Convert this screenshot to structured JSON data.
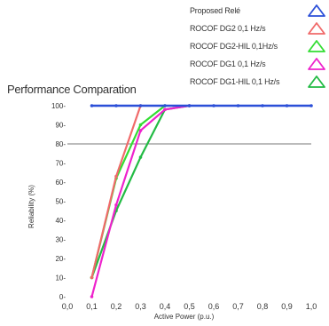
{
  "chart_data": {
    "type": "line",
    "title": "Performance Comparation",
    "xlabel": "Active Power (p.u.)",
    "ylabel": "Reliability (%)",
    "xlim": [
      0.0,
      1.0
    ],
    "ylim": [
      0,
      100
    ],
    "x_ticks": [
      "0,0",
      "0,1",
      "0,2",
      "0,3",
      "0,4",
      "0,5",
      "0,6",
      "0,7",
      "0,8",
      "0,9",
      "1,0"
    ],
    "y_ticks": [
      "0",
      "10",
      "20",
      "30",
      "40",
      "50",
      "60",
      "70",
      "80",
      "90",
      "100"
    ],
    "y_tick_suffix": "-",
    "reference_lines": [
      80
    ],
    "legend_placement": "top-right",
    "series": [
      {
        "name": "Proposed Relé",
        "color": "#2b4fd8",
        "x": [
          0.1,
          0.2,
          0.3,
          0.4,
          0.5,
          0.6,
          0.7,
          0.8,
          0.9,
          1.0
        ],
        "values": [
          100,
          100,
          100,
          100,
          100,
          100,
          100,
          100,
          100,
          100
        ]
      },
      {
        "name": "ROCOF DG2 0,1 Hz/s",
        "color": "#f06a6a",
        "x": [
          0.1,
          0.2,
          0.3
        ],
        "values": [
          10,
          63,
          100
        ]
      },
      {
        "name": "ROCOF DG2-HIL 0,1Hz/s",
        "color": "#33dd33",
        "x": [
          0.1,
          0.2,
          0.3,
          0.4
        ],
        "values": [
          10,
          62,
          90,
          100
        ]
      },
      {
        "name": "ROCOF DG1  0,1 Hz/s",
        "color": "#ee22cc",
        "x": [
          0.1,
          0.2,
          0.3,
          0.4,
          0.5
        ],
        "values": [
          0,
          48,
          87,
          98,
          100
        ]
      },
      {
        "name": "ROCOF DG1-HIL  0,1 Hz/s",
        "color": "#22bb44",
        "x": [
          0.1,
          0.2,
          0.3,
          0.4,
          0.5
        ],
        "values": [
          10,
          45,
          73,
          98,
          100
        ]
      }
    ]
  }
}
